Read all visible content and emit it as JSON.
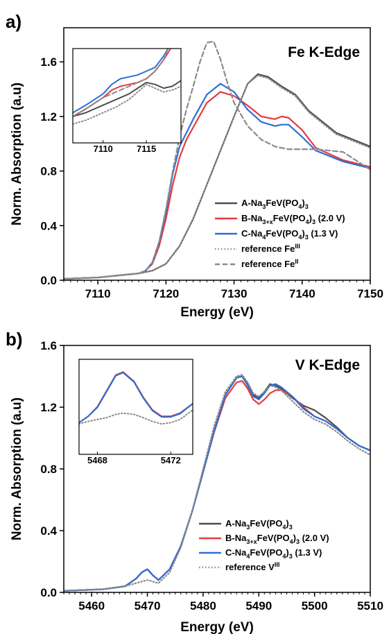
{
  "panel_labels": [
    "a)",
    "b)"
  ],
  "colors": {
    "A": "#4d4d4d",
    "B": "#e8383d",
    "C": "#2a6fd6",
    "ref3": "#8a8a8a",
    "ref2": "#8a8a8a"
  },
  "chart_data": [
    {
      "type": "line",
      "panel_label": "a)",
      "title": "Fe K-Edge",
      "xlabel": "Energy (eV)",
      "ylabel": "Norm. Absorption (a.u)",
      "xlim": [
        7105,
        7150
      ],
      "ylim": [
        0,
        1.85
      ],
      "xticks": [
        7110,
        7120,
        7130,
        7140,
        7150
      ],
      "xtick_labels": [
        "7110",
        "7120",
        "7130",
        "7140",
        "7150"
      ],
      "yticks": [
        0.0,
        0.4,
        0.8,
        1.2,
        1.6
      ],
      "ytick_labels": [
        "0.0",
        "0.4",
        "0.8",
        "1.2",
        "1.6"
      ],
      "grid": false,
      "legend_position": "center-right",
      "series": [
        {
          "key": "A",
          "prefix": "A-Na",
          "sub1": "3",
          "mid": "FeV(PO",
          "sub2": "4",
          "suffix": ")",
          "sub3": "3",
          "tail": "",
          "style": "solid",
          "x": [
            7105,
            7110,
            7114,
            7116,
            7118,
            7120,
            7122,
            7124,
            7126,
            7128,
            7130,
            7132,
            7133.5,
            7135,
            7137,
            7139,
            7141,
            7145,
            7150
          ],
          "y": [
            0.01,
            0.02,
            0.04,
            0.05,
            0.07,
            0.12,
            0.25,
            0.45,
            0.7,
            0.95,
            1.2,
            1.44,
            1.51,
            1.49,
            1.42,
            1.36,
            1.24,
            1.08,
            0.98
          ]
        },
        {
          "key": "B",
          "prefix": "B-Na",
          "sub1": "3+x",
          "mid": "FeV(PO",
          "sub2": "4",
          "suffix": ")",
          "sub3": "3",
          "tail": " (2.0 V)",
          "style": "solid",
          "x": [
            7105,
            7110,
            7114,
            7116,
            7117,
            7118,
            7119,
            7120,
            7121,
            7122,
            7123,
            7124,
            7126,
            7128,
            7130,
            7132,
            7134,
            7136,
            7137,
            7138,
            7140,
            7142,
            7146,
            7150
          ],
          "y": [
            0.01,
            0.02,
            0.04,
            0.05,
            0.07,
            0.12,
            0.25,
            0.45,
            0.7,
            0.9,
            1.03,
            1.12,
            1.3,
            1.38,
            1.35,
            1.28,
            1.2,
            1.18,
            1.2,
            1.19,
            1.1,
            0.97,
            0.88,
            0.83
          ]
        },
        {
          "key": "C",
          "prefix": "C-Na",
          "sub1": "4",
          "mid": "FeV(PO",
          "sub2": "4",
          "suffix": ")",
          "sub3": "3",
          "tail": " (1.3 V)",
          "style": "solid",
          "x": [
            7105,
            7110,
            7114,
            7116,
            7117,
            7118,
            7119,
            7120,
            7121,
            7122,
            7124,
            7126,
            7128,
            7130,
            7132,
            7134,
            7136,
            7137,
            7138,
            7140,
            7142,
            7146,
            7150
          ],
          "y": [
            0.01,
            0.02,
            0.04,
            0.05,
            0.07,
            0.13,
            0.28,
            0.5,
            0.78,
            0.98,
            1.18,
            1.36,
            1.44,
            1.38,
            1.25,
            1.16,
            1.13,
            1.14,
            1.14,
            1.05,
            0.95,
            0.87,
            0.82
          ]
        },
        {
          "key": "ref3",
          "prefix": "reference Fe",
          "sup": "III",
          "style": "dotted",
          "x": [
            7105,
            7110,
            7114,
            7116,
            7118,
            7120,
            7122,
            7124,
            7126,
            7128,
            7130,
            7132,
            7133.5,
            7135,
            7137,
            7139,
            7141,
            7145,
            7150
          ],
          "y": [
            0.01,
            0.02,
            0.04,
            0.05,
            0.07,
            0.12,
            0.25,
            0.45,
            0.7,
            0.95,
            1.2,
            1.44,
            1.5,
            1.48,
            1.41,
            1.35,
            1.23,
            1.07,
            0.97
          ]
        },
        {
          "key": "ref2",
          "prefix": "reference Fe",
          "sup": "II",
          "style": "dashed",
          "x": [
            7105,
            7110,
            7114,
            7116,
            7117,
            7118,
            7119,
            7120,
            7121,
            7122,
            7123,
            7124,
            7125,
            7126,
            7127,
            7128,
            7129,
            7130,
            7132,
            7134,
            7136,
            7138,
            7140,
            7142,
            7146,
            7150
          ],
          "y": [
            0.01,
            0.02,
            0.04,
            0.05,
            0.07,
            0.13,
            0.28,
            0.52,
            0.8,
            1.05,
            1.25,
            1.42,
            1.6,
            1.74,
            1.75,
            1.62,
            1.45,
            1.3,
            1.13,
            1.03,
            0.98,
            0.96,
            0.96,
            0.96,
            0.94,
            0.81
          ]
        }
      ],
      "inset": {
        "xlim": [
          7106.5,
          7119
        ],
        "ylim": [
          0,
          0.25
        ],
        "xticks": [
          7110,
          7115
        ],
        "xtick_labels": [
          "7110",
          "7115"
        ],
        "series": [
          {
            "key": "A",
            "x": [
              7106.5,
              7108,
              7110,
              7111.5,
              7113,
              7114,
              7115,
              7116,
              7117,
              7118,
              7119
            ],
            "y": [
              0.07,
              0.08,
              0.1,
              0.115,
              0.13,
              0.145,
              0.16,
              0.155,
              0.145,
              0.15,
              0.165
            ]
          },
          {
            "key": "B",
            "x": [
              7106.5,
              7108,
              7110,
              7111,
              7112,
              7113,
              7114,
              7115,
              7116,
              7117,
              7117.8
            ],
            "y": [
              0.07,
              0.09,
              0.12,
              0.14,
              0.15,
              0.155,
              0.16,
              0.17,
              0.19,
              0.22,
              0.25
            ]
          },
          {
            "key": "C",
            "x": [
              7106.5,
              7108,
              7110,
              7111,
              7112,
              7113,
              7114,
              7115,
              7116,
              7117,
              7117.5
            ],
            "y": [
              0.08,
              0.1,
              0.13,
              0.155,
              0.17,
              0.175,
              0.18,
              0.19,
              0.2,
              0.23,
              0.25
            ]
          },
          {
            "key": "ref3",
            "x": [
              7106.5,
              7108,
              7110,
              7111.5,
              7113,
              7114,
              7115,
              7116,
              7117,
              7118,
              7119
            ],
            "y": [
              0.05,
              0.06,
              0.08,
              0.095,
              0.115,
              0.135,
              0.155,
              0.145,
              0.135,
              0.14,
              0.15
            ]
          },
          {
            "key": "ref2",
            "x": [
              7106.5,
              7108,
              7110,
              7111,
              7112,
              7113,
              7114,
              7115,
              7116,
              7117,
              7117.5
            ],
            "y": [
              0.07,
              0.09,
              0.12,
              0.13,
              0.14,
              0.15,
              0.16,
              0.17,
              0.19,
              0.22,
              0.25
            ]
          }
        ]
      }
    },
    {
      "type": "line",
      "panel_label": "b)",
      "title": "V K-Edge",
      "xlabel": "Energy (eV)",
      "ylabel": "Norm. Absorption (a.u)",
      "xlim": [
        5455,
        5510
      ],
      "ylim": [
        0,
        1.6
      ],
      "xticks": [
        5460,
        5470,
        5480,
        5490,
        5500,
        5510
      ],
      "xtick_labels": [
        "5460",
        "5470",
        "5480",
        "5490",
        "5500",
        "5510"
      ],
      "yticks": [
        0.0,
        0.4,
        0.8,
        1.2,
        1.6
      ],
      "ytick_labels": [
        "0.0",
        "0.4",
        "0.8",
        "1.2",
        "1.6"
      ],
      "grid": false,
      "legend_position": "bottom-right",
      "series": [
        {
          "key": "A",
          "prefix": "A-Na",
          "sub1": "3",
          "mid": "FeV(PO",
          "sub2": "4",
          "suffix": ")",
          "sub3": "3",
          "tail": "",
          "style": "solid",
          "x": [
            5455,
            5462,
            5466,
            5468,
            5469,
            5470,
            5471,
            5472,
            5474,
            5476,
            5478,
            5480,
            5482,
            5484,
            5486,
            5487,
            5488,
            5489,
            5490,
            5491,
            5492,
            5493,
            5494,
            5496,
            5498,
            5500,
            5502,
            5504,
            5506,
            5508,
            5510
          ],
          "y": [
            0.01,
            0.02,
            0.04,
            0.09,
            0.13,
            0.15,
            0.11,
            0.08,
            0.15,
            0.3,
            0.52,
            0.78,
            1.05,
            1.28,
            1.39,
            1.4,
            1.35,
            1.28,
            1.26,
            1.3,
            1.35,
            1.34,
            1.32,
            1.26,
            1.21,
            1.18,
            1.13,
            1.07,
            1.0,
            0.95,
            0.92
          ]
        },
        {
          "key": "B",
          "prefix": "B-Na",
          "sub1": "3+x",
          "mid": "FeV(PO",
          "sub2": "4",
          "suffix": ")",
          "sub3": "3",
          "tail": " (2.0 V)",
          "style": "solid",
          "x": [
            5455,
            5462,
            5466,
            5468,
            5469,
            5470,
            5471,
            5472,
            5474,
            5476,
            5478,
            5480,
            5482,
            5484,
            5486,
            5487,
            5488,
            5489,
            5490,
            5491,
            5492,
            5493,
            5494,
            5496,
            5498,
            5500,
            5502,
            5504,
            5506,
            5508,
            5510
          ],
          "y": [
            0.01,
            0.02,
            0.04,
            0.09,
            0.13,
            0.15,
            0.11,
            0.08,
            0.15,
            0.3,
            0.52,
            0.78,
            1.04,
            1.26,
            1.36,
            1.37,
            1.32,
            1.25,
            1.22,
            1.25,
            1.29,
            1.31,
            1.31,
            1.27,
            1.2,
            1.14,
            1.11,
            1.06,
            1.0,
            0.95,
            0.92
          ]
        },
        {
          "key": "C",
          "prefix": "C-Na",
          "sub1": "4",
          "mid": "FeV(PO",
          "sub2": "4",
          "suffix": ")",
          "sub3": "3",
          "tail": " (1.3 V)",
          "style": "solid",
          "x": [
            5455,
            5462,
            5466,
            5468,
            5469,
            5470,
            5471,
            5472,
            5474,
            5476,
            5478,
            5480,
            5482,
            5484,
            5486,
            5487,
            5488,
            5489,
            5490,
            5491,
            5492,
            5493,
            5494,
            5496,
            5498,
            5500,
            5502,
            5504,
            5506,
            5508,
            5510
          ],
          "y": [
            0.01,
            0.02,
            0.04,
            0.09,
            0.13,
            0.15,
            0.11,
            0.08,
            0.15,
            0.3,
            0.52,
            0.78,
            1.05,
            1.28,
            1.39,
            1.4,
            1.34,
            1.27,
            1.25,
            1.29,
            1.34,
            1.35,
            1.33,
            1.27,
            1.19,
            1.14,
            1.11,
            1.06,
            1.0,
            0.95,
            0.92
          ]
        },
        {
          "key": "ref3",
          "prefix": "reference V",
          "sup": "III",
          "style": "dotted",
          "x": [
            5455,
            5462,
            5466,
            5468,
            5469,
            5470,
            5471,
            5472,
            5474,
            5476,
            5478,
            5480,
            5482,
            5484,
            5486,
            5487,
            5488,
            5489,
            5490,
            5491,
            5492,
            5493,
            5494,
            5496,
            5498,
            5500,
            5502,
            5504,
            5506,
            5508,
            5510
          ],
          "y": [
            0.01,
            0.02,
            0.04,
            0.06,
            0.07,
            0.08,
            0.07,
            0.06,
            0.13,
            0.29,
            0.52,
            0.8,
            1.08,
            1.3,
            1.4,
            1.41,
            1.36,
            1.29,
            1.27,
            1.3,
            1.34,
            1.33,
            1.31,
            1.24,
            1.17,
            1.12,
            1.09,
            1.04,
            0.98,
            0.93,
            0.89
          ]
        }
      ],
      "inset": {
        "xlim": [
          5467,
          5473.2
        ],
        "ylim": [
          0.02,
          0.17
        ],
        "xticks": [
          5468,
          5472
        ],
        "xtick_labels": [
          "5468",
          "5472"
        ],
        "series": [
          {
            "key": "A",
            "x": [
              5467,
              5467.5,
              5468,
              5468.5,
              5469,
              5469.4,
              5470,
              5470.5,
              5471,
              5471.5,
              5472,
              5472.5,
              5473.2
            ],
            "y": [
              0.07,
              0.08,
              0.095,
              0.12,
              0.145,
              0.15,
              0.135,
              0.11,
              0.09,
              0.08,
              0.08,
              0.085,
              0.1
            ]
          },
          {
            "key": "B",
            "x": [
              5467,
              5467.5,
              5468,
              5468.5,
              5469,
              5469.4,
              5470,
              5470.5,
              5471,
              5471.5,
              5472,
              5472.5,
              5473.2
            ],
            "y": [
              0.07,
              0.08,
              0.095,
              0.12,
              0.145,
              0.15,
              0.135,
              0.11,
              0.09,
              0.08,
              0.08,
              0.085,
              0.1
            ]
          },
          {
            "key": "C",
            "x": [
              5467,
              5467.5,
              5468,
              5468.5,
              5469,
              5469.4,
              5470,
              5470.5,
              5471,
              5471.5,
              5472,
              5472.5,
              5473.2
            ],
            "y": [
              0.07,
              0.08,
              0.094,
              0.119,
              0.144,
              0.149,
              0.134,
              0.109,
              0.089,
              0.079,
              0.079,
              0.084,
              0.1
            ]
          },
          {
            "key": "ref3",
            "x": [
              5467,
              5467.5,
              5468,
              5468.5,
              5469,
              5469.4,
              5470,
              5470.5,
              5471,
              5471.5,
              5472,
              5472.5,
              5473.2
            ],
            "y": [
              0.068,
              0.072,
              0.075,
              0.078,
              0.083,
              0.085,
              0.083,
              0.078,
              0.072,
              0.068,
              0.07,
              0.075,
              0.09
            ]
          }
        ]
      }
    }
  ]
}
